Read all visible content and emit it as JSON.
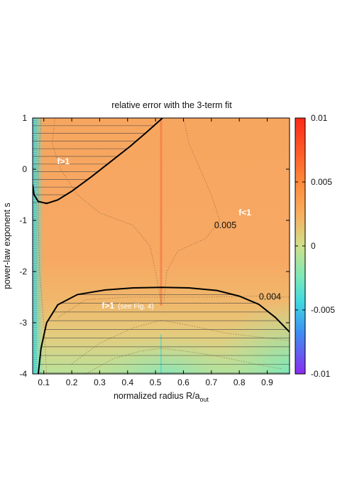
{
  "chart_data": {
    "type": "heatmap",
    "title": "relative error with the 3-term fit",
    "xlabel_main": "normalized radius R/a",
    "xlabel_sub": "out",
    "ylabel": "power-law exponent s",
    "xlim": [
      0.06,
      0.98
    ],
    "ylim": [
      -4,
      1
    ],
    "x_ticks": [
      "0.1",
      "0.2",
      "0.3",
      "0.4",
      "0.5",
      "0.6",
      "0.7",
      "0.8",
      "0.9"
    ],
    "y_ticks": [
      "1",
      "0",
      "-1",
      "-2",
      "-3",
      "-4"
    ],
    "colorbar": {
      "range": [
        -0.01,
        0.01
      ],
      "ticks": [
        "0.01",
        "0.005",
        "0",
        "-0.005",
        "-0.01"
      ],
      "colors": [
        "#ff2a1a",
        "#ff6a2a",
        "#f7a65a",
        "#e8c878",
        "#9ce8a0",
        "#4ee0d0",
        "#30a8f0",
        "#6a5cf0",
        "#8a2cf0"
      ]
    },
    "background_colors": {
      "main": "#f7a862",
      "lower": "#e6c97e",
      "low_corner": "#a8e6a0",
      "left_edge": "#5fe0d2"
    },
    "contours": [
      {
        "label": "0.005",
        "x": 0.75,
        "y": -1.15
      },
      {
        "label": "0.004",
        "x": 0.91,
        "y": -2.55
      }
    ],
    "region_labels": [
      {
        "text": "f>1",
        "x": 0.17,
        "y": 0.1
      },
      {
        "text": "f<1",
        "x": 0.82,
        "y": -0.9
      },
      {
        "text": "f>1",
        "x": 0.33,
        "y": -2.72,
        "note": "(see Fig. 4)"
      }
    ],
    "boundaries": [
      {
        "name": "upper f=1 boundary",
        "points": [
          [
            0.06,
            -0.3
          ],
          [
            0.065,
            -0.5
          ],
          [
            0.08,
            -0.63
          ],
          [
            0.11,
            -0.67
          ],
          [
            0.15,
            -0.6
          ],
          [
            0.2,
            -0.43
          ],
          [
            0.27,
            -0.15
          ],
          [
            0.34,
            0.15
          ],
          [
            0.41,
            0.45
          ],
          [
            0.47,
            0.73
          ],
          [
            0.525,
            1.0
          ]
        ]
      },
      {
        "name": "lower f=1 boundary",
        "points": [
          [
            0.08,
            -4.0
          ],
          [
            0.09,
            -3.5
          ],
          [
            0.11,
            -3.0
          ],
          [
            0.15,
            -2.65
          ],
          [
            0.22,
            -2.45
          ],
          [
            0.32,
            -2.36
          ],
          [
            0.42,
            -2.32
          ],
          [
            0.52,
            -2.31
          ],
          [
            0.62,
            -2.32
          ],
          [
            0.72,
            -2.37
          ],
          [
            0.8,
            -2.48
          ],
          [
            0.87,
            -2.64
          ],
          [
            0.93,
            -2.9
          ],
          [
            0.98,
            -3.18
          ]
        ]
      }
    ],
    "grid": false,
    "legend": "colorbar-right"
  }
}
